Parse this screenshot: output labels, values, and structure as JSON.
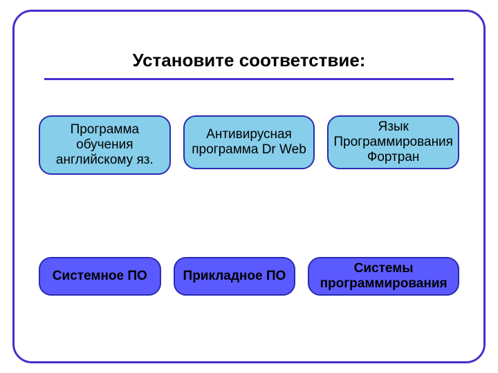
{
  "title": "Установите соответствие:",
  "colors": {
    "frame_border": "#4b2cce",
    "underline": "#4b2cce",
    "top_fill": "#87ceeb",
    "top_border": "#2a2ab0",
    "bottom_fill": "#5a5aff",
    "bottom_border": "#2a2ab0",
    "text": "#000000",
    "background": "#ffffff",
    "title_fontsize": 26,
    "card_fontsize": 19
  },
  "top_row": [
    {
      "label": "Программа обучения английскому яз."
    },
    {
      "label": "Антивирусная программа\nDr Web"
    },
    {
      "label": "Язык Программирования Фортран"
    }
  ],
  "bottom_row": [
    {
      "label": "Системное ПО"
    },
    {
      "label": "Прикладное ПО"
    },
    {
      "label": "Системы программирования",
      "wide": true
    }
  ]
}
